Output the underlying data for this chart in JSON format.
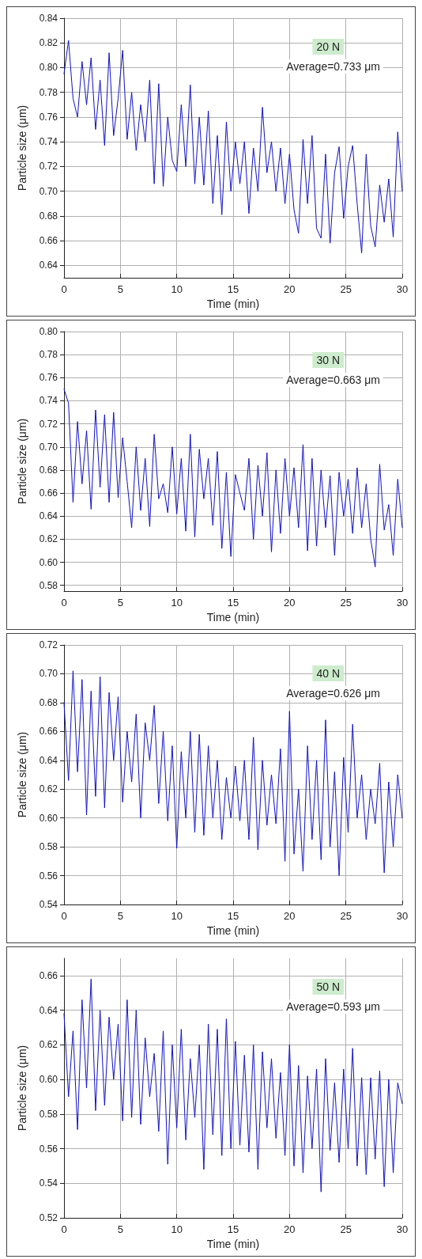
{
  "chart_data": [
    {
      "type": "line",
      "xlabel": "Time (min)",
      "ylabel": "Particle size (μm)",
      "annotations": [
        "20 N",
        "Average=0.733 μm"
      ],
      "grid": true,
      "marker": "none",
      "line_style": "solid",
      "xlim": [
        0,
        30
      ],
      "xticks": [
        0,
        5,
        10,
        15,
        20,
        25,
        30
      ],
      "ylim": [
        0.63,
        0.84
      ],
      "yticks": [
        {
          "value": 0.64,
          "label": "0.64"
        },
        {
          "value": 0.66,
          "label": "0.66"
        },
        {
          "value": 0.68,
          "label": "0.68"
        },
        {
          "value": 0.7,
          "label": "0.70"
        },
        {
          "value": 0.72,
          "label": "0.72"
        },
        {
          "value": 0.74,
          "label": "0.74"
        },
        {
          "value": 0.76,
          "label": "0.76"
        },
        {
          "value": 0.78,
          "label": "0.78"
        },
        {
          "value": 0.8,
          "label": "0.80"
        },
        {
          "value": 0.82,
          "label": "0.82"
        },
        {
          "value": 0.84,
          "label": "0.84"
        }
      ],
      "x": [
        0,
        0.4,
        0.8,
        1.2,
        1.6,
        2,
        2.4,
        2.8,
        3.2,
        3.6,
        4,
        4.4,
        4.8,
        5.2,
        5.6,
        6,
        6.4,
        6.8,
        7.2,
        7.6,
        8,
        8.4,
        8.8,
        9.2,
        9.6,
        10,
        10.4,
        10.8,
        11.2,
        11.6,
        12,
        12.4,
        12.8,
        13.2,
        13.6,
        14,
        14.4,
        14.8,
        15.2,
        15.6,
        16,
        16.4,
        16.8,
        17.2,
        17.6,
        18,
        18.4,
        18.8,
        19.2,
        19.6,
        20,
        20.4,
        20.8,
        21.2,
        21.6,
        22,
        22.4,
        22.8,
        23.2,
        23.6,
        24,
        24.4,
        24.8,
        25.2,
        25.6,
        26,
        26.4,
        26.8,
        27.2,
        27.6,
        28,
        28.4,
        28.8,
        29.2,
        29.6,
        30
      ],
      "series": [
        {
          "color": "#1010c8",
          "values": [
            0.795,
            0.822,
            0.775,
            0.76,
            0.805,
            0.77,
            0.808,
            0.75,
            0.79,
            0.737,
            0.812,
            0.745,
            0.775,
            0.814,
            0.742,
            0.78,
            0.733,
            0.77,
            0.74,
            0.79,
            0.706,
            0.787,
            0.704,
            0.76,
            0.725,
            0.716,
            0.77,
            0.72,
            0.786,
            0.706,
            0.76,
            0.705,
            0.765,
            0.69,
            0.745,
            0.681,
            0.756,
            0.7,
            0.74,
            0.706,
            0.74,
            0.682,
            0.735,
            0.7,
            0.768,
            0.715,
            0.74,
            0.7,
            0.735,
            0.69,
            0.73,
            0.685,
            0.666,
            0.742,
            0.69,
            0.745,
            0.67,
            0.662,
            0.73,
            0.658,
            0.715,
            0.736,
            0.678,
            0.72,
            0.737,
            0.69,
            0.65,
            0.73,
            0.672,
            0.655,
            0.705,
            0.675,
            0.71,
            0.663,
            0.748,
            0.7
          ]
        }
      ]
    },
    {
      "type": "line",
      "xlabel": "Time (min)",
      "ylabel": "Particle size (μm)",
      "annotations": [
        "30 N",
        "Average=0.663 μm"
      ],
      "grid": true,
      "marker": "none",
      "line_style": "solid",
      "xlim": [
        0,
        30
      ],
      "xticks": [
        0,
        5,
        10,
        15,
        20,
        25,
        30
      ],
      "ylim": [
        0.575,
        0.8
      ],
      "yticks": [
        {
          "value": 0.58,
          "label": "0.58"
        },
        {
          "value": 0.6,
          "label": "0.60"
        },
        {
          "value": 0.62,
          "label": "0.62"
        },
        {
          "value": 0.64,
          "label": "0.64"
        },
        {
          "value": 0.66,
          "label": "0.66"
        },
        {
          "value": 0.68,
          "label": "0.68"
        },
        {
          "value": 0.7,
          "label": "0.70"
        },
        {
          "value": 0.72,
          "label": "0.72"
        },
        {
          "value": 0.74,
          "label": "0.74"
        },
        {
          "value": 0.76,
          "label": "0.76"
        },
        {
          "value": 0.78,
          "label": "0.78"
        },
        {
          "value": 0.8,
          "label": "0.80"
        }
      ],
      "x": [
        0,
        0.4,
        0.8,
        1.2,
        1.6,
        2,
        2.4,
        2.8,
        3.2,
        3.6,
        4,
        4.4,
        4.8,
        5.2,
        5.6,
        6,
        6.4,
        6.8,
        7.2,
        7.6,
        8,
        8.4,
        8.8,
        9.2,
        9.6,
        10,
        10.4,
        10.8,
        11.2,
        11.6,
        12,
        12.4,
        12.8,
        13.2,
        13.6,
        14,
        14.4,
        14.8,
        15.2,
        15.6,
        16,
        16.4,
        16.8,
        17.2,
        17.6,
        18,
        18.4,
        18.8,
        19.2,
        19.6,
        20,
        20.4,
        20.8,
        21.2,
        21.6,
        22,
        22.4,
        22.8,
        23.2,
        23.6,
        24,
        24.4,
        24.8,
        25.2,
        25.6,
        26,
        26.4,
        26.8,
        27.2,
        27.6,
        28,
        28.4,
        28.8,
        29.2,
        29.6,
        30
      ],
      "series": [
        {
          "color": "#1010c8",
          "values": [
            0.75,
            0.738,
            0.652,
            0.722,
            0.668,
            0.714,
            0.646,
            0.732,
            0.665,
            0.728,
            0.652,
            0.73,
            0.656,
            0.708,
            0.67,
            0.63,
            0.7,
            0.645,
            0.69,
            0.631,
            0.711,
            0.655,
            0.668,
            0.643,
            0.7,
            0.642,
            0.69,
            0.627,
            0.711,
            0.622,
            0.698,
            0.655,
            0.69,
            0.632,
            0.696,
            0.612,
            0.678,
            0.605,
            0.676,
            0.66,
            0.645,
            0.69,
            0.62,
            0.684,
            0.64,
            0.695,
            0.609,
            0.68,
            0.625,
            0.69,
            0.64,
            0.682,
            0.63,
            0.702,
            0.61,
            0.69,
            0.614,
            0.68,
            0.63,
            0.675,
            0.606,
            0.678,
            0.64,
            0.672,
            0.625,
            0.682,
            0.63,
            0.668,
            0.62,
            0.596,
            0.685,
            0.628,
            0.65,
            0.606,
            0.672,
            0.63
          ]
        }
      ]
    },
    {
      "type": "line",
      "xlabel": "Time (min)",
      "ylabel": "Particle size (μm)",
      "annotations": [
        "40 N",
        "Average=0.626 μm"
      ],
      "grid": true,
      "marker": "none",
      "line_style": "solid",
      "xlim": [
        0,
        30
      ],
      "xticks": [
        0,
        5,
        10,
        15,
        20,
        25,
        30
      ],
      "ylim": [
        0.54,
        0.72
      ],
      "yticks": [
        {
          "value": 0.54,
          "label": "0.54"
        },
        {
          "value": 0.56,
          "label": "0.56"
        },
        {
          "value": 0.58,
          "label": "0.58"
        },
        {
          "value": 0.6,
          "label": "0.60"
        },
        {
          "value": 0.62,
          "label": "0.62"
        },
        {
          "value": 0.64,
          "label": "0.64"
        },
        {
          "value": 0.66,
          "label": "0.66"
        },
        {
          "value": 0.68,
          "label": "0.68"
        },
        {
          "value": 0.7,
          "label": "0.70"
        },
        {
          "value": 0.72,
          "label": "0.72"
        }
      ],
      "x": [
        0,
        0.4,
        0.8,
        1.2,
        1.6,
        2,
        2.4,
        2.8,
        3.2,
        3.6,
        4,
        4.4,
        4.8,
        5.2,
        5.6,
        6,
        6.4,
        6.8,
        7.2,
        7.6,
        8,
        8.4,
        8.8,
        9.2,
        9.6,
        10,
        10.4,
        10.8,
        11.2,
        11.6,
        12,
        12.4,
        12.8,
        13.2,
        13.6,
        14,
        14.4,
        14.8,
        15.2,
        15.6,
        16,
        16.4,
        16.8,
        17.2,
        17.6,
        18,
        18.4,
        18.8,
        19.2,
        19.6,
        20,
        20.4,
        20.8,
        21.2,
        21.6,
        22,
        22.4,
        22.8,
        23.2,
        23.6,
        24,
        24.4,
        24.8,
        25.2,
        25.6,
        26,
        26.4,
        26.8,
        27.2,
        27.6,
        28,
        28.4,
        28.8,
        29.2,
        29.6,
        30
      ],
      "series": [
        {
          "color": "#1010c8",
          "values": [
            0.68,
            0.626,
            0.702,
            0.632,
            0.696,
            0.602,
            0.688,
            0.615,
            0.698,
            0.607,
            0.687,
            0.64,
            0.684,
            0.611,
            0.66,
            0.625,
            0.672,
            0.6,
            0.666,
            0.64,
            0.678,
            0.61,
            0.66,
            0.598,
            0.65,
            0.579,
            0.646,
            0.6,
            0.66,
            0.59,
            0.658,
            0.588,
            0.65,
            0.6,
            0.64,
            0.585,
            0.628,
            0.6,
            0.636,
            0.598,
            0.64,
            0.585,
            0.656,
            0.578,
            0.64,
            0.595,
            0.63,
            0.596,
            0.648,
            0.57,
            0.674,
            0.575,
            0.62,
            0.563,
            0.65,
            0.585,
            0.64,
            0.571,
            0.668,
            0.58,
            0.632,
            0.56,
            0.642,
            0.59,
            0.665,
            0.6,
            0.63,
            0.585,
            0.62,
            0.596,
            0.638,
            0.562,
            0.625,
            0.58,
            0.63,
            0.6
          ]
        }
      ]
    },
    {
      "type": "line",
      "xlabel": "Time (min)",
      "ylabel": "Particle size (μm)",
      "annotations": [
        "50 N",
        "Average=0.593 μm"
      ],
      "grid": true,
      "marker": "none",
      "line_style": "solid",
      "xlim": [
        0,
        30
      ],
      "xticks": [
        0,
        5,
        10,
        15,
        20,
        25,
        30
      ],
      "ylim": [
        0.52,
        0.67
      ],
      "yticks": [
        {
          "value": 0.52,
          "label": "0.52"
        },
        {
          "value": 0.54,
          "label": "0.54"
        },
        {
          "value": 0.56,
          "label": "0.56"
        },
        {
          "value": 0.58,
          "label": "0.58"
        },
        {
          "value": 0.6,
          "label": "0.60"
        },
        {
          "value": 0.62,
          "label": "0.62"
        },
        {
          "value": 0.64,
          "label": "0.64"
        },
        {
          "value": 0.66,
          "label": "0.66"
        }
      ],
      "x": [
        0,
        0.4,
        0.8,
        1.2,
        1.6,
        2,
        2.4,
        2.8,
        3.2,
        3.6,
        4,
        4.4,
        4.8,
        5.2,
        5.6,
        6,
        6.4,
        6.8,
        7.2,
        7.6,
        8,
        8.4,
        8.8,
        9.2,
        9.6,
        10,
        10.4,
        10.8,
        11.2,
        11.6,
        12,
        12.4,
        12.8,
        13.2,
        13.6,
        14,
        14.4,
        14.8,
        15.2,
        15.6,
        16,
        16.4,
        16.8,
        17.2,
        17.6,
        18,
        18.4,
        18.8,
        19.2,
        19.6,
        20,
        20.4,
        20.8,
        21.2,
        21.6,
        22,
        22.4,
        22.8,
        23.2,
        23.6,
        24,
        24.4,
        24.8,
        25.2,
        25.6,
        26,
        26.4,
        26.8,
        27.2,
        27.6,
        28,
        28.4,
        28.8,
        29.2,
        29.6,
        30
      ],
      "series": [
        {
          "color": "#1010c8",
          "values": [
            0.638,
            0.59,
            0.628,
            0.571,
            0.646,
            0.595,
            0.658,
            0.582,
            0.64,
            0.585,
            0.636,
            0.6,
            0.632,
            0.576,
            0.646,
            0.578,
            0.64,
            0.574,
            0.624,
            0.59,
            0.615,
            0.57,
            0.628,
            0.551,
            0.62,
            0.572,
            0.629,
            0.565,
            0.612,
            0.578,
            0.62,
            0.548,
            0.632,
            0.568,
            0.629,
            0.556,
            0.635,
            0.56,
            0.622,
            0.562,
            0.614,
            0.558,
            0.62,
            0.548,
            0.616,
            0.572,
            0.612,
            0.566,
            0.604,
            0.556,
            0.62,
            0.55,
            0.608,
            0.546,
            0.602,
            0.56,
            0.606,
            0.535,
            0.612,
            0.559,
            0.598,
            0.552,
            0.606,
            0.56,
            0.618,
            0.55,
            0.601,
            0.545,
            0.601,
            0.554,
            0.605,
            0.538,
            0.6,
            0.546,
            0.598,
            0.586
          ]
        }
      ]
    }
  ]
}
